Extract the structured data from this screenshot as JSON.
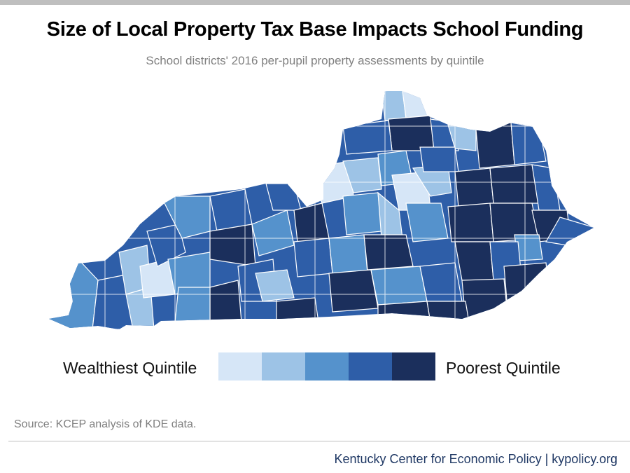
{
  "title": "Size of Local Property Tax Base Impacts School Funding",
  "subtitle": "School districts' 2016 per-pupil property assessments by quintile",
  "legend": {
    "low_label": "Wealthiest Quintile",
    "high_label": "Poorest Quintile",
    "colors": [
      "#d6e6f7",
      "#9dc3e6",
      "#5592cc",
      "#2e5ea8",
      "#1b2f5c"
    ]
  },
  "source": "Source: KCEP analysis of KDE data.",
  "footer": "Kentucky Center for Economic Policy | kypolicy.org"
}
